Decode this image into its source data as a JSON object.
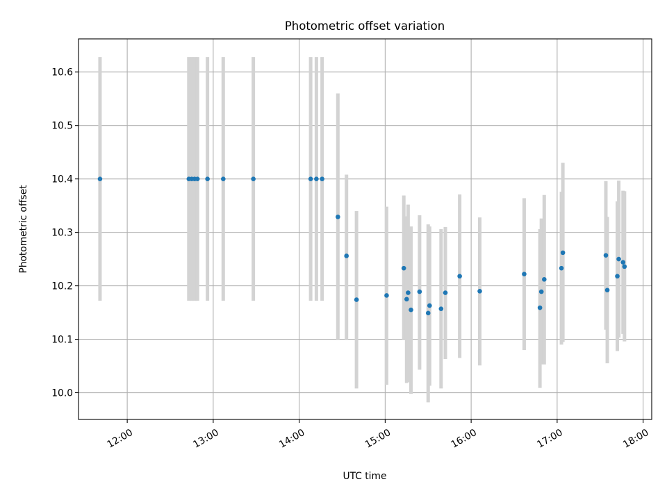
{
  "chart_data": {
    "type": "scatter",
    "title": "Photometric offset variation",
    "xlabel": "UTC time",
    "ylabel": "Photometric offset",
    "x_tick_labels": [
      "12:00",
      "13:00",
      "14:00",
      "15:00",
      "16:00",
      "17:00",
      "18:00"
    ],
    "x_ticks": [
      "12:00",
      "13:00",
      "14:00",
      "15:00",
      "16:00",
      "17:00",
      "18:00"
    ],
    "xlim": [
      "11:26",
      "18:06"
    ],
    "ylim": [
      9.95,
      10.662
    ],
    "y_ticks": [
      10.0,
      10.1,
      10.2,
      10.3,
      10.4,
      10.5,
      10.6
    ],
    "y_tick_labels": [
      "10.0",
      "10.1",
      "10.2",
      "10.3",
      "10.4",
      "10.5",
      "10.6"
    ],
    "grid": true,
    "colors": {
      "marker": "#1f77b4",
      "errorbar": "#d3d3d3",
      "grid": "#b0b0b0"
    },
    "points": [
      {
        "x": "11:41",
        "y": 10.4,
        "ylow": 10.172,
        "yhigh": 10.628
      },
      {
        "x": "12:43",
        "y": 10.4,
        "ylow": 10.172,
        "yhigh": 10.628
      },
      {
        "x": "12:45",
        "y": 10.4,
        "ylow": 10.172,
        "yhigh": 10.628
      },
      {
        "x": "12:47",
        "y": 10.4,
        "ylow": 10.172,
        "yhigh": 10.628
      },
      {
        "x": "12:49",
        "y": 10.4,
        "ylow": 10.172,
        "yhigh": 10.628
      },
      {
        "x": "12:56",
        "y": 10.4,
        "ylow": 10.172,
        "yhigh": 10.628
      },
      {
        "x": "13:07",
        "y": 10.4,
        "ylow": 10.172,
        "yhigh": 10.628
      },
      {
        "x": "13:28",
        "y": 10.4,
        "ylow": 10.172,
        "yhigh": 10.628
      },
      {
        "x": "14:08",
        "y": 10.4,
        "ylow": 10.172,
        "yhigh": 10.628
      },
      {
        "x": "14:12",
        "y": 10.4,
        "ylow": 10.172,
        "yhigh": 10.628
      },
      {
        "x": "14:16",
        "y": 10.4,
        "ylow": 10.172,
        "yhigh": 10.628
      },
      {
        "x": "14:27",
        "y": 10.329,
        "ylow": 10.1,
        "yhigh": 10.56
      },
      {
        "x": "14:33",
        "y": 10.256,
        "ylow": 10.1,
        "yhigh": 10.408
      },
      {
        "x": "14:40",
        "y": 10.174,
        "ylow": 10.008,
        "yhigh": 10.34
      },
      {
        "x": "15:01",
        "y": 10.182,
        "ylow": 10.015,
        "yhigh": 10.348
      },
      {
        "x": "15:13",
        "y": 10.233,
        "ylow": 10.1,
        "yhigh": 10.369
      },
      {
        "x": "15:15",
        "y": 10.175,
        "ylow": 10.018,
        "yhigh": 10.33
      },
      {
        "x": "15:16",
        "y": 10.187,
        "ylow": 10.02,
        "yhigh": 10.352
      },
      {
        "x": "15:18",
        "y": 10.155,
        "ylow": 9.998,
        "yhigh": 10.311
      },
      {
        "x": "15:24",
        "y": 10.189,
        "ylow": 10.043,
        "yhigh": 10.332
      },
      {
        "x": "15:30",
        "y": 10.149,
        "ylow": 9.982,
        "yhigh": 10.315
      },
      {
        "x": "15:31",
        "y": 10.163,
        "ylow": 10.013,
        "yhigh": 10.311
      },
      {
        "x": "15:39",
        "y": 10.157,
        "ylow": 10.008,
        "yhigh": 10.306
      },
      {
        "x": "15:42",
        "y": 10.187,
        "ylow": 10.063,
        "yhigh": 10.31
      },
      {
        "x": "15:52",
        "y": 10.218,
        "ylow": 10.065,
        "yhigh": 10.371
      },
      {
        "x": "16:06",
        "y": 10.19,
        "ylow": 10.051,
        "yhigh": 10.328
      },
      {
        "x": "16:37",
        "y": 10.222,
        "ylow": 10.08,
        "yhigh": 10.364
      },
      {
        "x": "16:48",
        "y": 10.159,
        "ylow": 10.009,
        "yhigh": 10.306
      },
      {
        "x": "16:49",
        "y": 10.189,
        "ylow": 10.053,
        "yhigh": 10.326
      },
      {
        "x": "16:51",
        "y": 10.212,
        "ylow": 10.053,
        "yhigh": 10.37
      },
      {
        "x": "17:03",
        "y": 10.233,
        "ylow": 10.09,
        "yhigh": 10.376
      },
      {
        "x": "17:04",
        "y": 10.262,
        "ylow": 10.095,
        "yhigh": 10.43
      },
      {
        "x": "17:34",
        "y": 10.257,
        "ylow": 10.118,
        "yhigh": 10.396
      },
      {
        "x": "17:35",
        "y": 10.192,
        "ylow": 10.055,
        "yhigh": 10.329
      },
      {
        "x": "17:42",
        "y": 10.218,
        "ylow": 10.078,
        "yhigh": 10.358
      },
      {
        "x": "17:43",
        "y": 10.25,
        "ylow": 10.103,
        "yhigh": 10.397
      },
      {
        "x": "17:46",
        "y": 10.244,
        "ylow": 10.11,
        "yhigh": 10.378
      },
      {
        "x": "17:47",
        "y": 10.236,
        "ylow": 10.096,
        "yhigh": 10.377
      }
    ]
  }
}
